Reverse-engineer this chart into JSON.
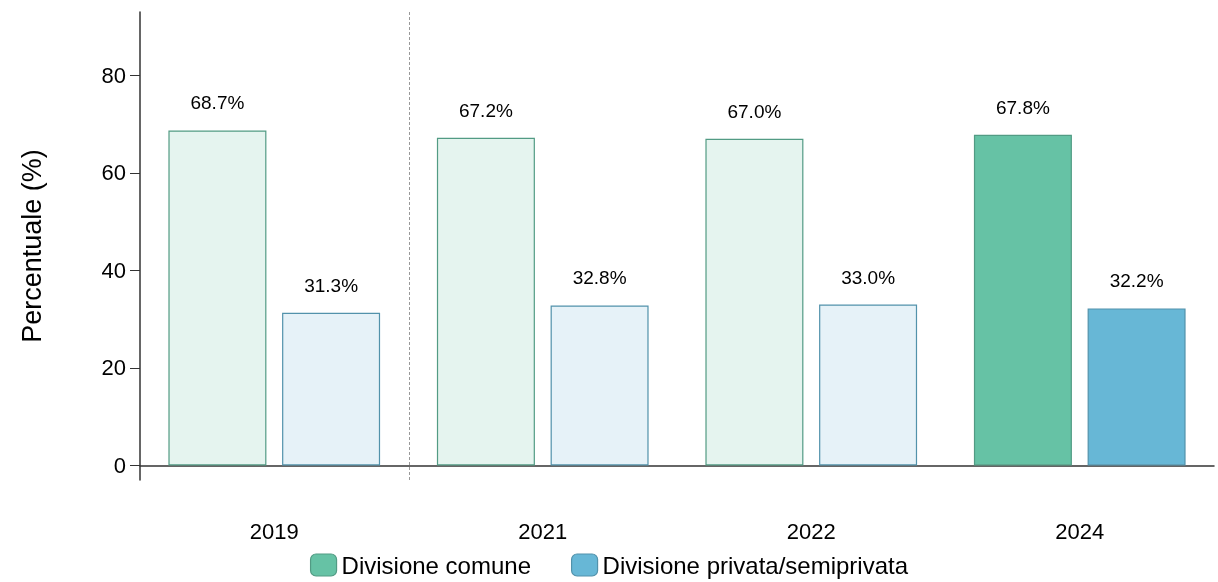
{
  "chart_data": {
    "type": "bar",
    "ylabel": "Percentuale (%)",
    "categories": [
      "2019",
      "2021",
      "2022",
      "2024"
    ],
    "series": [
      {
        "name": "Divisione comune",
        "color": "#66c2a5",
        "colors": [
          "#e5f4ef",
          "#e5f4ef",
          "#e5f4ef",
          "#66c2a5"
        ],
        "values": [
          68.7,
          67.2,
          67.0,
          67.8
        ],
        "value_labels": [
          "68.7%",
          "67.2%",
          "67.0%",
          "67.8%"
        ]
      },
      {
        "name": "Divisione privata/semiprivata",
        "color": "#67b7d6",
        "colors": [
          "#e6f2f8",
          "#e6f2f8",
          "#e6f2f8",
          "#67b7d6"
        ],
        "values": [
          31.3,
          32.8,
          33.0,
          32.2
        ],
        "value_labels": [
          "31.3%",
          "32.8%",
          "33.0%",
          "32.2%"
        ]
      }
    ],
    "ylim": [
      -3,
      93
    ],
    "yticks": [
      0,
      20,
      40,
      60,
      80
    ],
    "grid": false,
    "legend": "bottom"
  }
}
